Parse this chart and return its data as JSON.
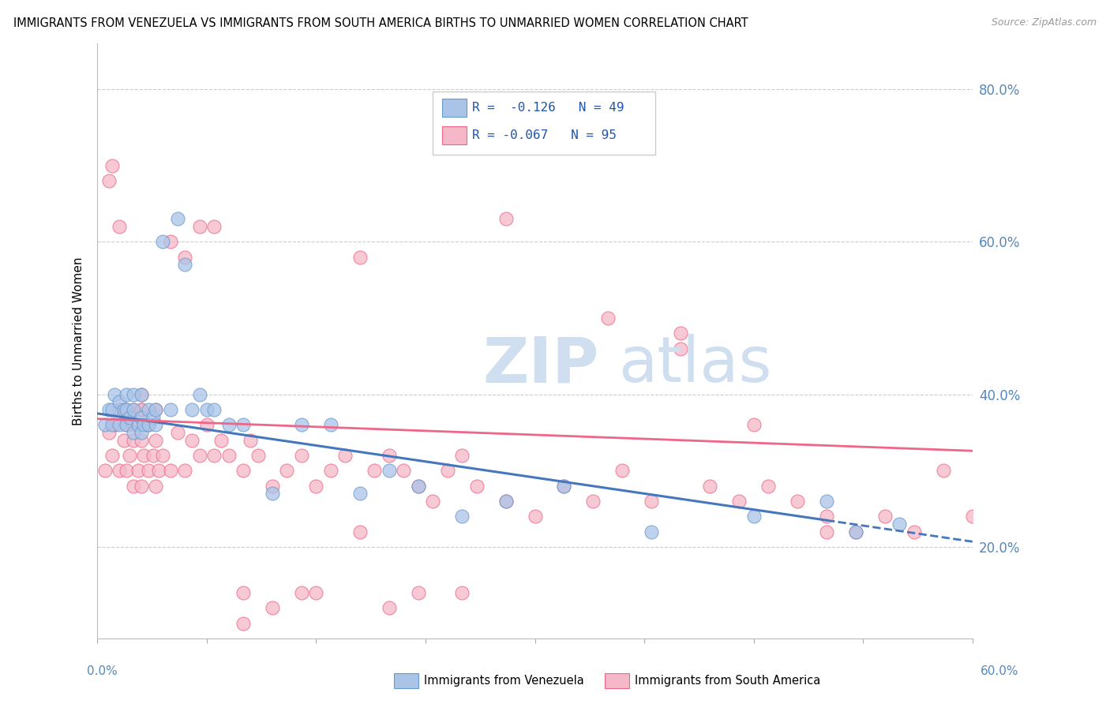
{
  "title": "IMMIGRANTS FROM VENEZUELA VS IMMIGRANTS FROM SOUTH AMERICA BIRTHS TO UNMARRIED WOMEN CORRELATION CHART",
  "source": "Source: ZipAtlas.com",
  "ylabel": "Births to Unmarried Women",
  "legend_blue_label": "R =  -0.126   N = 49",
  "legend_pink_label": "R = -0.067   N = 95",
  "legend_label_blue": "Immigrants from Venezuela",
  "legend_label_pink": "Immigrants from South America",
  "blue_fill": "#aac4e8",
  "pink_fill": "#f5b8c8",
  "blue_edge": "#6699cc",
  "pink_edge": "#ee6688",
  "blue_line": "#4477bb",
  "pink_line": "#ee6688",
  "watermark_color": "#d0dff0",
  "xmin": 0.0,
  "xmax": 0.6,
  "ymin": 0.08,
  "ymax": 0.86,
  "blue_scatter_x": [
    0.005,
    0.008,
    0.01,
    0.01,
    0.012,
    0.015,
    0.015,
    0.018,
    0.02,
    0.02,
    0.02,
    0.022,
    0.025,
    0.025,
    0.025,
    0.028,
    0.03,
    0.03,
    0.03,
    0.032,
    0.035,
    0.035,
    0.038,
    0.04,
    0.04,
    0.045,
    0.05,
    0.055,
    0.06,
    0.065,
    0.07,
    0.075,
    0.08,
    0.09,
    0.1,
    0.12,
    0.14,
    0.16,
    0.18,
    0.2,
    0.22,
    0.25,
    0.28,
    0.32,
    0.38,
    0.45,
    0.5,
    0.52,
    0.55
  ],
  "blue_scatter_y": [
    0.36,
    0.38,
    0.36,
    0.38,
    0.4,
    0.36,
    0.39,
    0.38,
    0.36,
    0.38,
    0.4,
    0.37,
    0.35,
    0.38,
    0.4,
    0.36,
    0.35,
    0.37,
    0.4,
    0.36,
    0.36,
    0.38,
    0.37,
    0.36,
    0.38,
    0.6,
    0.38,
    0.63,
    0.57,
    0.38,
    0.4,
    0.38,
    0.38,
    0.36,
    0.36,
    0.27,
    0.36,
    0.36,
    0.27,
    0.3,
    0.28,
    0.24,
    0.26,
    0.28,
    0.22,
    0.24,
    0.26,
    0.22,
    0.23
  ],
  "pink_scatter_x": [
    0.005,
    0.008,
    0.01,
    0.012,
    0.015,
    0.015,
    0.018,
    0.02,
    0.02,
    0.022,
    0.025,
    0.025,
    0.025,
    0.028,
    0.03,
    0.03,
    0.03,
    0.032,
    0.035,
    0.035,
    0.038,
    0.04,
    0.04,
    0.042,
    0.045,
    0.05,
    0.055,
    0.06,
    0.065,
    0.07,
    0.075,
    0.08,
    0.085,
    0.09,
    0.1,
    0.105,
    0.11,
    0.12,
    0.13,
    0.14,
    0.15,
    0.16,
    0.17,
    0.18,
    0.19,
    0.2,
    0.21,
    0.22,
    0.23,
    0.24,
    0.25,
    0.26,
    0.28,
    0.3,
    0.32,
    0.34,
    0.36,
    0.38,
    0.4,
    0.42,
    0.44,
    0.46,
    0.48,
    0.5,
    0.52,
    0.54,
    0.56,
    0.58,
    0.6,
    0.28,
    0.35,
    0.4,
    0.45,
    0.5,
    0.22,
    0.18,
    0.14,
    0.1,
    0.07,
    0.05,
    0.03,
    0.025,
    0.02,
    0.015,
    0.01,
    0.008,
    0.03,
    0.04,
    0.06,
    0.08,
    0.1,
    0.12,
    0.15,
    0.2,
    0.25
  ],
  "pink_scatter_y": [
    0.3,
    0.35,
    0.32,
    0.36,
    0.3,
    0.38,
    0.34,
    0.3,
    0.36,
    0.32,
    0.28,
    0.34,
    0.38,
    0.3,
    0.28,
    0.34,
    0.38,
    0.32,
    0.3,
    0.36,
    0.32,
    0.28,
    0.34,
    0.3,
    0.32,
    0.3,
    0.35,
    0.3,
    0.34,
    0.32,
    0.36,
    0.32,
    0.34,
    0.32,
    0.3,
    0.34,
    0.32,
    0.28,
    0.3,
    0.32,
    0.28,
    0.3,
    0.32,
    0.58,
    0.3,
    0.32,
    0.3,
    0.28,
    0.26,
    0.3,
    0.32,
    0.28,
    0.26,
    0.24,
    0.28,
    0.26,
    0.3,
    0.26,
    0.46,
    0.28,
    0.26,
    0.28,
    0.26,
    0.24,
    0.22,
    0.24,
    0.22,
    0.3,
    0.24,
    0.63,
    0.5,
    0.48,
    0.36,
    0.22,
    0.14,
    0.22,
    0.14,
    0.14,
    0.62,
    0.6,
    0.38,
    0.36,
    0.38,
    0.62,
    0.7,
    0.68,
    0.4,
    0.38,
    0.58,
    0.62,
    0.1,
    0.12,
    0.14,
    0.12,
    0.14
  ]
}
